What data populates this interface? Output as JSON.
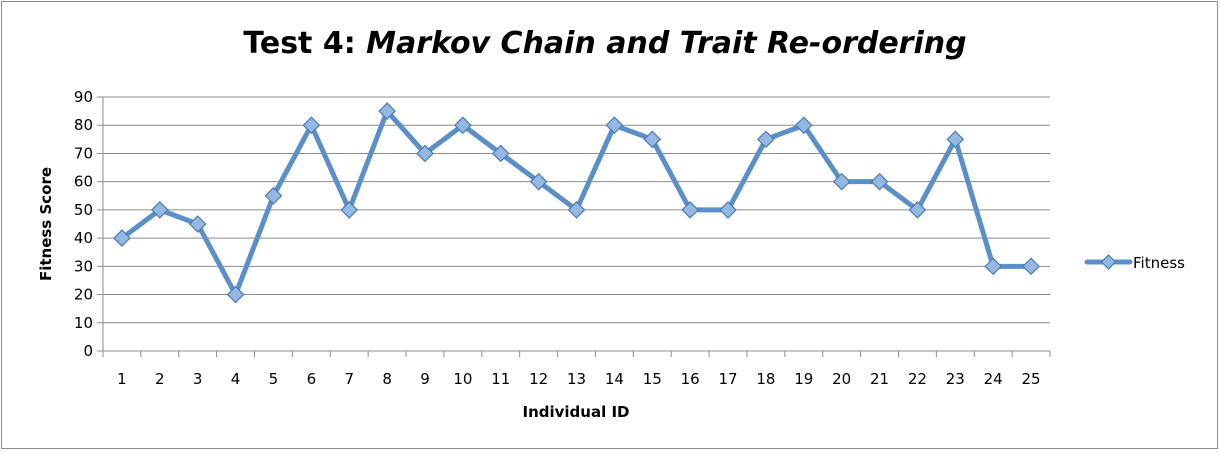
{
  "chart_data": {
    "type": "line",
    "title_prefix": "Test 4: ",
    "title_italic": "Markov Chain and Trait Re-ordering",
    "xlabel": "Individual ID",
    "ylabel": "Fitness Score",
    "categories": [
      "1",
      "2",
      "3",
      "4",
      "5",
      "6",
      "7",
      "8",
      "9",
      "10",
      "11",
      "12",
      "13",
      "14",
      "15",
      "16",
      "17",
      "18",
      "19",
      "20",
      "21",
      "22",
      "23",
      "24",
      "25"
    ],
    "series": [
      {
        "name": "Fitness",
        "values": [
          40,
          50,
          45,
          20,
          55,
          80,
          50,
          85,
          70,
          80,
          70,
          60,
          50,
          80,
          75,
          50,
          50,
          75,
          80,
          60,
          60,
          50,
          75,
          30,
          30
        ]
      }
    ],
    "ylim": [
      0,
      90
    ],
    "yticks": [
      0,
      10,
      20,
      30,
      40,
      50,
      60,
      70,
      80,
      90
    ],
    "grid": true,
    "legend_position": "right",
    "colors": {
      "line": "#5b8fc9",
      "marker_fill": "#95b8e3",
      "marker_edge": "#4a7ab5",
      "grid": "#8c8c8c"
    }
  }
}
